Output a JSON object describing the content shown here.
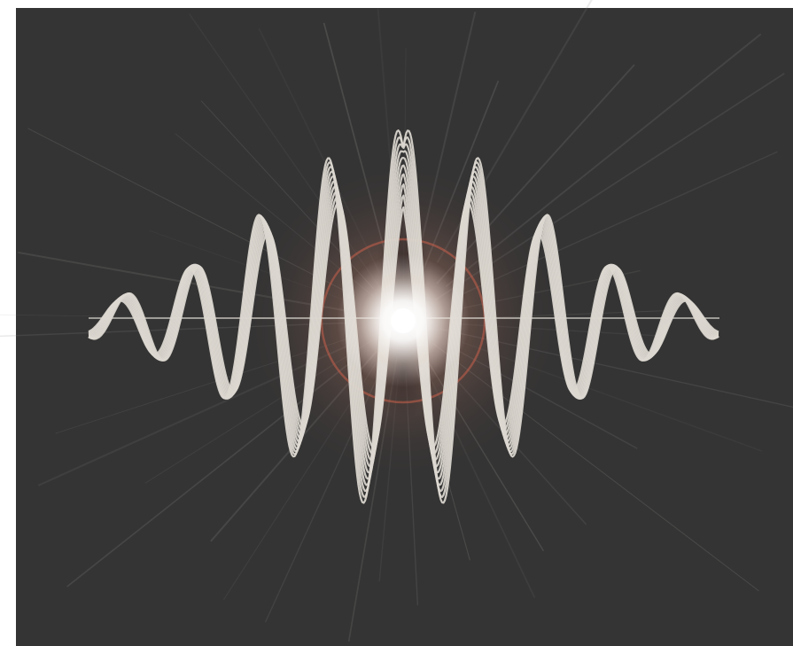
{
  "artwork": {
    "subject": "glowing-sound-wave",
    "colors": {
      "page_background": "#ffffff",
      "panel_background": "#343434",
      "wave_stroke": "#dcd8d0",
      "glow_core": "#ffffff",
      "glow_warm": "#d98a6e",
      "halo_ring": "#c9604a",
      "ray": "#8a8a88"
    },
    "wave": {
      "strand_count": 10,
      "cycles_visible": 9
    },
    "rays": {
      "count": 40
    }
  }
}
